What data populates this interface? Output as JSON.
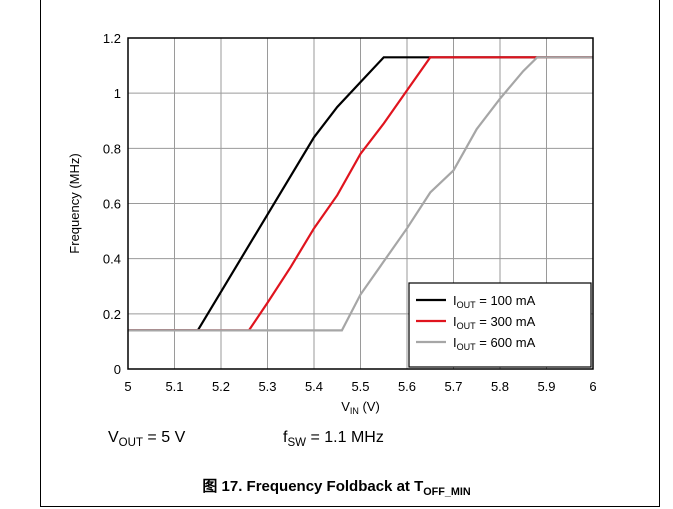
{
  "chart_data": {
    "type": "line",
    "xlabel": {
      "main": "V",
      "sub": "IN",
      "unit": " (V)"
    },
    "ylabel": "Frequency (MHz)",
    "xlim": [
      5,
      6
    ],
    "ylim": [
      0,
      1.2
    ],
    "xticks": [
      "5",
      "5.1",
      "5.2",
      "5.3",
      "5.4",
      "5.5",
      "5.6",
      "5.7",
      "5.8",
      "5.9",
      "6"
    ],
    "yticks": [
      "0",
      "0.2",
      "0.4",
      "0.6",
      "0.8",
      "1",
      "1.2"
    ],
    "grid": true,
    "legend_position": "bottom-right",
    "series": [
      {
        "name": "100 mA",
        "label_main": "I",
        "label_sub": "OUT",
        "label_rest": " = 100 mA",
        "color": "#000000",
        "points": [
          [
            5.0,
            0.14
          ],
          [
            5.15,
            0.14
          ],
          [
            5.2,
            0.28
          ],
          [
            5.3,
            0.56
          ],
          [
            5.4,
            0.84
          ],
          [
            5.45,
            0.95
          ],
          [
            5.5,
            1.04
          ],
          [
            5.55,
            1.13
          ],
          [
            6.0,
            1.13
          ]
        ]
      },
      {
        "name": "300 mA",
        "label_main": "I",
        "label_sub": "OUT",
        "label_rest": " = 300 mA",
        "color": "#e0141e",
        "points": [
          [
            5.0,
            0.14
          ],
          [
            5.26,
            0.14
          ],
          [
            5.3,
            0.24
          ],
          [
            5.35,
            0.37
          ],
          [
            5.4,
            0.51
          ],
          [
            5.45,
            0.63
          ],
          [
            5.5,
            0.78
          ],
          [
            5.55,
            0.89
          ],
          [
            5.6,
            1.01
          ],
          [
            5.65,
            1.13
          ],
          [
            6.0,
            1.13
          ]
        ]
      },
      {
        "name": "600 mA",
        "label_main": "I",
        "label_sub": "OUT",
        "label_rest": " = 600 mA",
        "color": "#a6a6a6",
        "points": [
          [
            5.0,
            0.14
          ],
          [
            5.46,
            0.14
          ],
          [
            5.5,
            0.27
          ],
          [
            5.55,
            0.39
          ],
          [
            5.6,
            0.51
          ],
          [
            5.65,
            0.64
          ],
          [
            5.7,
            0.72
          ],
          [
            5.75,
            0.87
          ],
          [
            5.8,
            0.98
          ],
          [
            5.85,
            1.08
          ],
          [
            5.88,
            1.13
          ],
          [
            6.0,
            1.13
          ]
        ]
      }
    ]
  },
  "conditions": {
    "vout": {
      "main": "V",
      "sub": "OUT",
      "rest": " = 5 V"
    },
    "fsw": {
      "main": "f",
      "sub": "SW",
      "rest": " = 1.1 MHz"
    }
  },
  "caption": {
    "prefix": "图 17. Frequency Foldback at T",
    "sub": "OFF_MIN"
  }
}
